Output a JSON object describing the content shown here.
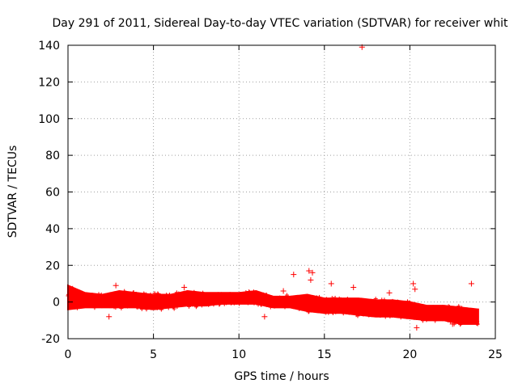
{
  "chart_data": {
    "type": "scatter",
    "title": "Day 291 of 2011, Sidereal Day-to-day VTEC variation (SDTVAR) for receiver whit",
    "xlabel": "GPS time / hours",
    "ylabel": "SDTVAR / TECUs",
    "xlim": [
      0,
      25
    ],
    "ylim": [
      -20,
      140
    ],
    "xticks": [
      0,
      5,
      10,
      15,
      20,
      25
    ],
    "yticks": [
      -20,
      0,
      20,
      40,
      60,
      80,
      100,
      120,
      140
    ],
    "grid": true,
    "marker": "+",
    "series": [
      {
        "name": "SDTVAR",
        "color": "#ff0000",
        "band": {
          "x": [
            0,
            1,
            2,
            3,
            4,
            5,
            6,
            7,
            8,
            9,
            10,
            11,
            12,
            13,
            14,
            15,
            16,
            17,
            18,
            19,
            20,
            21,
            22,
            23,
            24
          ],
          "upper": [
            9,
            5,
            4,
            6,
            5,
            4,
            4,
            6,
            5,
            5,
            5,
            6,
            3,
            3,
            4,
            2,
            2,
            2,
            1,
            1,
            0,
            -2,
            -2,
            -3,
            -4
          ],
          "lower": [
            -4,
            -3,
            -3,
            -3,
            -3,
            -4,
            -3,
            -2,
            -2,
            -1,
            -1,
            -1,
            -3,
            -3,
            -5,
            -6,
            -6,
            -7,
            -8,
            -8,
            -9,
            -10,
            -10,
            -12,
            -12
          ]
        },
        "outliers": [
          {
            "x": 17.2,
            "y": 139
          },
          {
            "x": 13.2,
            "y": 15
          },
          {
            "x": 14.1,
            "y": 17
          },
          {
            "x": 14.3,
            "y": 16
          },
          {
            "x": 14.2,
            "y": 12
          },
          {
            "x": 15.4,
            "y": 10
          },
          {
            "x": 16.7,
            "y": 8
          },
          {
            "x": 20.2,
            "y": 10
          },
          {
            "x": 20.3,
            "y": 7
          },
          {
            "x": 23.6,
            "y": 10
          },
          {
            "x": 2.8,
            "y": 9
          },
          {
            "x": 6.8,
            "y": 8
          },
          {
            "x": 12.6,
            "y": 6
          },
          {
            "x": 18.8,
            "y": 5
          },
          {
            "x": 20.4,
            "y": -14
          },
          {
            "x": 2.4,
            "y": -8
          },
          {
            "x": 11.5,
            "y": -8
          },
          {
            "x": 22.5,
            "y": -12
          }
        ]
      }
    ]
  }
}
